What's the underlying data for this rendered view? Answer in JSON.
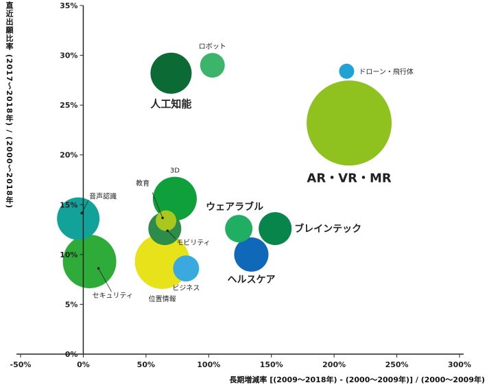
{
  "chart_data": {
    "type": "scatter",
    "xlabel": "長期増減率 [(2009～2018年) - (2000～2009年)] / (2000～2009年)",
    "ylabel": "直近出願比率 (2017～2018年) / (2000～2018年)",
    "xlim": [
      -50,
      300
    ],
    "ylim": [
      0,
      35
    ],
    "x_ticks": [
      "-50%",
      "0%",
      "50%",
      "100%",
      "150%",
      "200%",
      "250%",
      "300%"
    ],
    "y_ticks": [
      "0%",
      "5%",
      "10%",
      "15%",
      "20%",
      "25%",
      "30%",
      "35%"
    ],
    "grid": false,
    "series": [
      {
        "name": "人工知能",
        "x": 70,
        "y": 28.2,
        "size": 30,
        "color": "#0c6a34",
        "bold": true
      },
      {
        "name": "ロボット",
        "x": 103,
        "y": 29.0,
        "size": 18,
        "color": "#3cb56a",
        "bold": false
      },
      {
        "name": "ドローン・飛行体",
        "x": 210,
        "y": 28.4,
        "size": 11,
        "color": "#1fa2d6",
        "bold": false
      },
      {
        "name": "AR・VR・MR",
        "x": 212,
        "y": 23.2,
        "size": 62,
        "color": "#8fc21f",
        "bold": true
      },
      {
        "name": "3D",
        "x": 73,
        "y": 15.6,
        "size": 32,
        "color": "#0fa03c",
        "bold": false
      },
      {
        "name": "教育",
        "x": 66,
        "y": 13.4,
        "size": 15,
        "color": "#a8c81e",
        "bold": false
      },
      {
        "name": "モビリティ",
        "x": 65,
        "y": 12.6,
        "size": 24,
        "color": "#2e8c4a",
        "bold": false
      },
      {
        "name": "音声認識",
        "x": -4,
        "y": 13.6,
        "size": 31,
        "color": "#12a29a",
        "bold": false
      },
      {
        "name": "セキュリティ",
        "x": 5,
        "y": 9.3,
        "size": 39,
        "color": "#2fab3a",
        "bold": false
      },
      {
        "name": "位置情報",
        "x": 63,
        "y": 9.3,
        "size": 40,
        "color": "#e8e21a",
        "bold": false
      },
      {
        "name": "ビジネス",
        "x": 82,
        "y": 8.6,
        "size": 19,
        "color": "#3aa9e0",
        "bold": false
      },
      {
        "name": "ウェアラブル",
        "x": 124,
        "y": 12.6,
        "size": 20,
        "color": "#1fae62",
        "bold": true
      },
      {
        "name": "ブレインテック",
        "x": 153,
        "y": 12.6,
        "size": 24,
        "color": "#08854a",
        "bold": true
      },
      {
        "name": "ヘルスケア",
        "x": 134,
        "y": 10.0,
        "size": 25,
        "color": "#1069b8",
        "bold": true
      }
    ]
  }
}
